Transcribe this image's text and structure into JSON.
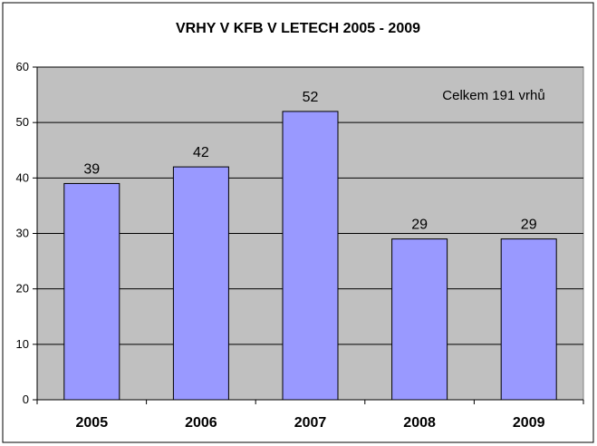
{
  "chart_data": {
    "type": "bar",
    "title": "VRHY V KFB V LETECH 2005 - 2009",
    "categories": [
      "2005",
      "2006",
      "2007",
      "2008",
      "2009"
    ],
    "values": [
      39,
      42,
      52,
      29,
      29
    ],
    "data_labels": [
      "39",
      "42",
      "52",
      "29",
      "29"
    ],
    "xlabel": "",
    "ylabel": "",
    "ylim": [
      0,
      60
    ],
    "yticks": [
      0,
      10,
      20,
      30,
      40,
      50,
      60
    ],
    "grid": true,
    "legend": "none",
    "annotation": "Celkem 191 vrhů",
    "colors": {
      "bar": "#9999ff",
      "bar_border": "#000000",
      "plot_background": "#c0c0c0",
      "gridline": "#000000"
    }
  }
}
